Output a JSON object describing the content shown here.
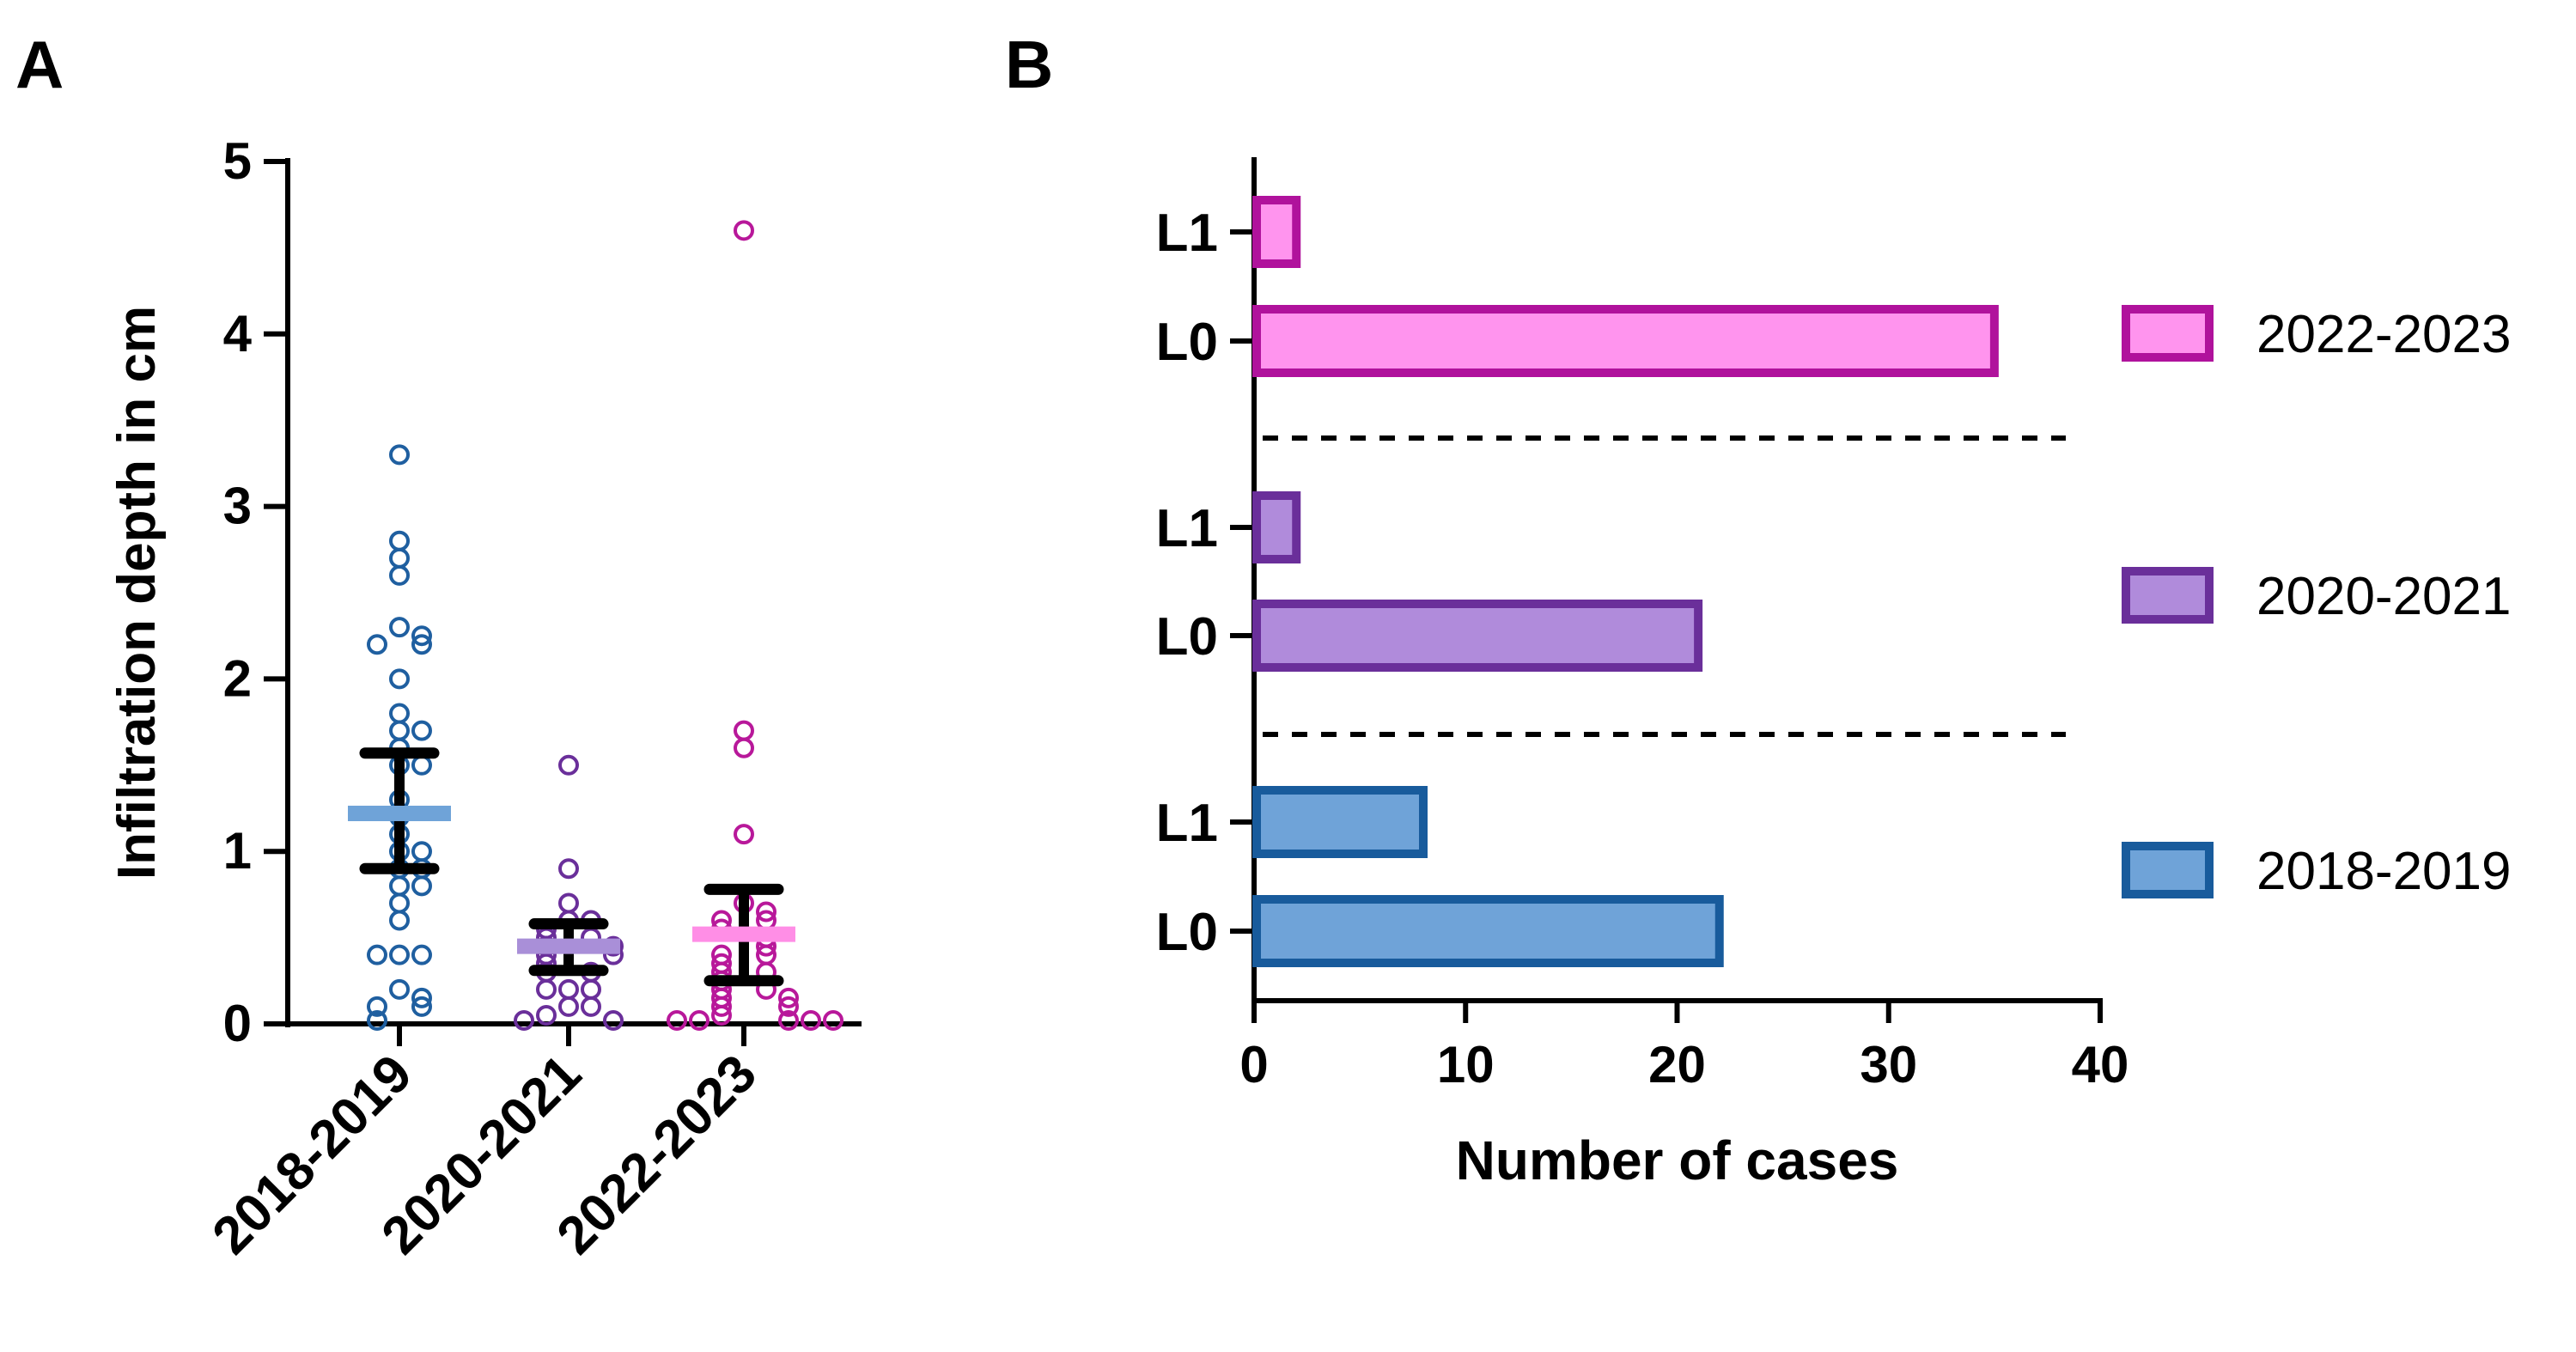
{
  "panels": {
    "a": {
      "letter": "A"
    },
    "b": {
      "letter": "B"
    }
  },
  "chart_data": [
    {
      "type": "scatter",
      "panel": "A",
      "title": "",
      "xlabel": "",
      "ylabel": "Infiltration depth in cm",
      "ylim": [
        0,
        5
      ],
      "yticks": [
        "0",
        "1",
        "2",
        "3",
        "4",
        "5"
      ],
      "categories": [
        "2018-2019",
        "2020-2021",
        "2022-2023"
      ],
      "grid": false,
      "series": [
        {
          "category": "2018-2019",
          "color": "#1f5fa0",
          "mean_color": "#6fa3d8",
          "mean": 1.22,
          "ci": [
            0.9,
            1.57
          ],
          "points": [
            3.3,
            2.8,
            2.7,
            2.6,
            2.3,
            2.25,
            2.2,
            2.2,
            2.0,
            1.8,
            1.7,
            1.7,
            1.6,
            1.5,
            1.5,
            1.3,
            1.2,
            1.1,
            1.0,
            1.0,
            0.9,
            0.9,
            0.8,
            0.8,
            0.7,
            0.6,
            0.4,
            0.4,
            0.4,
            0.2,
            0.15,
            0.1,
            0.1,
            0.02
          ]
        },
        {
          "category": "2020-2021",
          "color": "#6a2f9a",
          "mean_color": "#a98fd8",
          "mean": 0.45,
          "ci": [
            0.31,
            0.58
          ],
          "points": [
            1.5,
            0.9,
            0.7,
            0.6,
            0.6,
            0.55,
            0.5,
            0.5,
            0.45,
            0.45,
            0.4,
            0.4,
            0.35,
            0.3,
            0.3,
            0.2,
            0.2,
            0.2,
            0.1,
            0.1,
            0.05,
            0.02,
            0.02
          ]
        },
        {
          "category": "2022-2023",
          "color": "#b8189a",
          "mean_color": "#ff8ee6",
          "mean": 0.52,
          "ci": [
            0.25,
            0.78
          ],
          "points": [
            4.6,
            1.7,
            1.6,
            1.1,
            0.7,
            0.65,
            0.6,
            0.6,
            0.55,
            0.5,
            0.45,
            0.4,
            0.4,
            0.35,
            0.3,
            0.3,
            0.25,
            0.2,
            0.2,
            0.15,
            0.15,
            0.1,
            0.1,
            0.05,
            0.02,
            0.02,
            0.02,
            0.02,
            0.02
          ]
        }
      ]
    },
    {
      "type": "bar",
      "panel": "B",
      "orientation": "horizontal",
      "title": "",
      "xlabel": "Number of cases",
      "ylabel": "",
      "xlim": [
        0,
        40
      ],
      "xticks": [
        "0",
        "10",
        "20",
        "30",
        "40"
      ],
      "grid": false,
      "legend_position": "right",
      "groups": [
        {
          "name": "2022-2023",
          "fill": "#ff94ee",
          "stroke": "#b0129c",
          "bars": [
            {
              "label": "L1",
              "value": 2
            },
            {
              "label": "L0",
              "value": 35
            }
          ]
        },
        {
          "name": "2020-2021",
          "fill": "#b08bdb",
          "stroke": "#6a2f9a",
          "bars": [
            {
              "label": "L1",
              "value": 2
            },
            {
              "label": "L0",
              "value": 21
            }
          ]
        },
        {
          "name": "2018-2019",
          "fill": "#6fa3d8",
          "stroke": "#185b9c",
          "bars": [
            {
              "label": "L1",
              "value": 8
            },
            {
              "label": "L0",
              "value": 22
            }
          ]
        }
      ]
    }
  ]
}
